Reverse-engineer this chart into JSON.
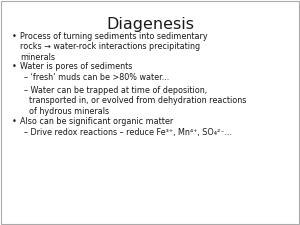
{
  "title": "Diagenesis",
  "background_color": "#ffffff",
  "text_color": "#1a1a1a",
  "title_fontsize": 11.5,
  "body_fontsize": 5.8,
  "border_color": "#aaaaaa",
  "bullet_char": "•",
  "dash_char": "–",
  "lines": [
    {
      "level": 0,
      "bullet": true,
      "text": "Process of turning sediments into sedimentary\nrocks → water-rock interactions precipitating\nminerals"
    },
    {
      "level": 0,
      "bullet": true,
      "text": "Water is pores of sediments"
    },
    {
      "level": 1,
      "bullet": false,
      "text": "– ‘fresh’ muds can be >80% water..."
    },
    {
      "level": 1,
      "bullet": false,
      "text": "– Water can be trapped at time of deposition,\n  transported in, or evolved from dehydration reactions\n  of hydrous minerals"
    },
    {
      "level": 0,
      "bullet": true,
      "text": "Also can be significant organic matter"
    },
    {
      "level": 1,
      "bullet": false,
      "text": "– Drive redox reactions – reduce Fe³⁺, Mn⁴⁺, SO₄²⁻..."
    }
  ]
}
